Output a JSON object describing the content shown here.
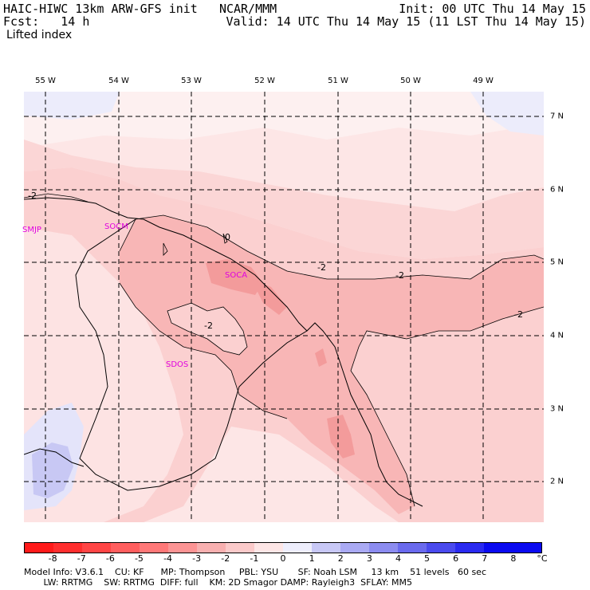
{
  "header": {
    "model_line": "HAIC-HIWC 13km ARW-GFS init",
    "org": "NCAR/MMM",
    "fcst_label": "Fcst:",
    "fcst_value": "14 h",
    "init": "Init: 00 UTC Thu 14 May 15",
    "valid": "Valid: 14 UTC Thu 14 May 15 (11 LST Thu 14 May 15)",
    "field": "Lifted index"
  },
  "map": {
    "longitude_labels": [
      "55 W",
      "54 W",
      "53 W",
      "52 W",
      "51 W",
      "50 W",
      "49 W"
    ],
    "latitude_labels": [
      "7 N",
      "6 N",
      "5 N",
      "4 N",
      "3 N",
      "2 N"
    ],
    "stations": [
      "SMJP",
      "SOCA",
      "SDOS",
      "SOCM"
    ],
    "contour_labels": [
      "-2",
      "-2",
      "-2",
      "-2",
      "-2",
      "0"
    ],
    "colors": {
      "bg_light": "#fde6e6",
      "pink_1": "#fbd0d0",
      "pink_2": "#f8b6b6",
      "pink_3": "#f39b9b",
      "lavender": "#e7e7fb",
      "blue_1": "#c8c8f4"
    }
  },
  "colorbar": {
    "tick_labels": [
      "-8",
      "-7",
      "-6",
      "-5",
      "-4",
      "-3",
      "-2",
      "-1",
      "0",
      "1",
      "2",
      "3",
      "4",
      "5",
      "6",
      "7",
      "8"
    ],
    "unit": "°C",
    "colors": [
      "#ff1a1a",
      "#ff2e2e",
      "#ff4545",
      "#ff5e5e",
      "#ff7878",
      "#fc9494",
      "#f8b0b0",
      "#fbcaca",
      "#fde6e6",
      "#eeeefc",
      "#c8c8f6",
      "#aaaaf4",
      "#8c8cf0",
      "#6a6aee",
      "#4a4aee",
      "#2a2af0",
      "#0a0af0"
    ]
  },
  "footer": {
    "line1": "Model Info: V3.6.1    CU: KF      MP: Thompson     PBL: YSU       SF: Noah LSM     13 km    51 levels   60 sec",
    "line2": "       LW: RRTMG    SW: RRTMG  DIFF: full    KM: 2D Smagor DAMP: Rayleigh3  SFLAY: MM5"
  }
}
